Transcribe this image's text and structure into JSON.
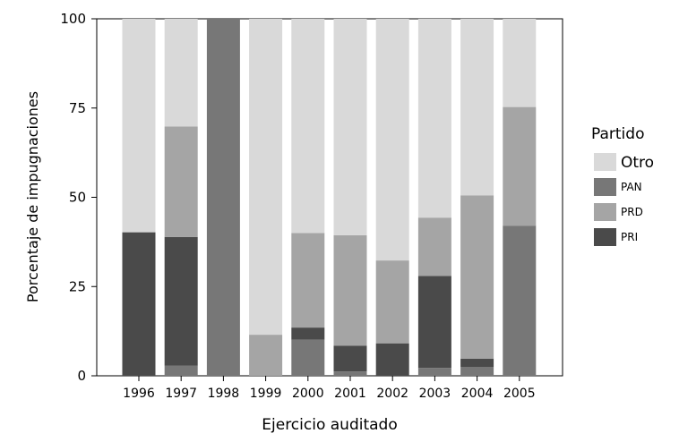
{
  "chart_data": {
    "type": "bar",
    "stacked": true,
    "xlabel": "Ejercicio auditado",
    "ylabel": "Porcentaje de impugnaciones",
    "ylim": [
      0,
      100
    ],
    "yticks": [
      0,
      25,
      50,
      75,
      100
    ],
    "grid": false,
    "categories": [
      "1996",
      "1997",
      "1998",
      "1999",
      "2000",
      "2001",
      "2002",
      "2003",
      "2004",
      "2005"
    ],
    "legend": {
      "title": "Partido",
      "placement": "right",
      "entries": [
        "Otro",
        "PAN",
        "PRD",
        "PRI"
      ]
    },
    "series": [
      {
        "name": "PAN",
        "color": "#777777",
        "values": [
          0,
          2.8,
          100,
          0,
          10.1,
          1.2,
          0,
          2.2,
          2.5,
          42
        ]
      },
      {
        "name": "PRI",
        "color": "#4a4a4a",
        "values": [
          40.2,
          36.1,
          0,
          0,
          3.4,
          7.2,
          9.1,
          25.8,
          2.3,
          0
        ]
      },
      {
        "name": "PRD",
        "color": "#a5a5a5",
        "values": [
          0,
          30.9,
          0,
          11.5,
          26.5,
          31,
          23.2,
          16.3,
          45.7,
          33.3
        ]
      },
      {
        "name": "Otro",
        "color": "#d9d9d9",
        "values": [
          59.8,
          30.2,
          0,
          88.5,
          60,
          60.6,
          67.7,
          55.7,
          49.5,
          24.7
        ]
      }
    ]
  }
}
